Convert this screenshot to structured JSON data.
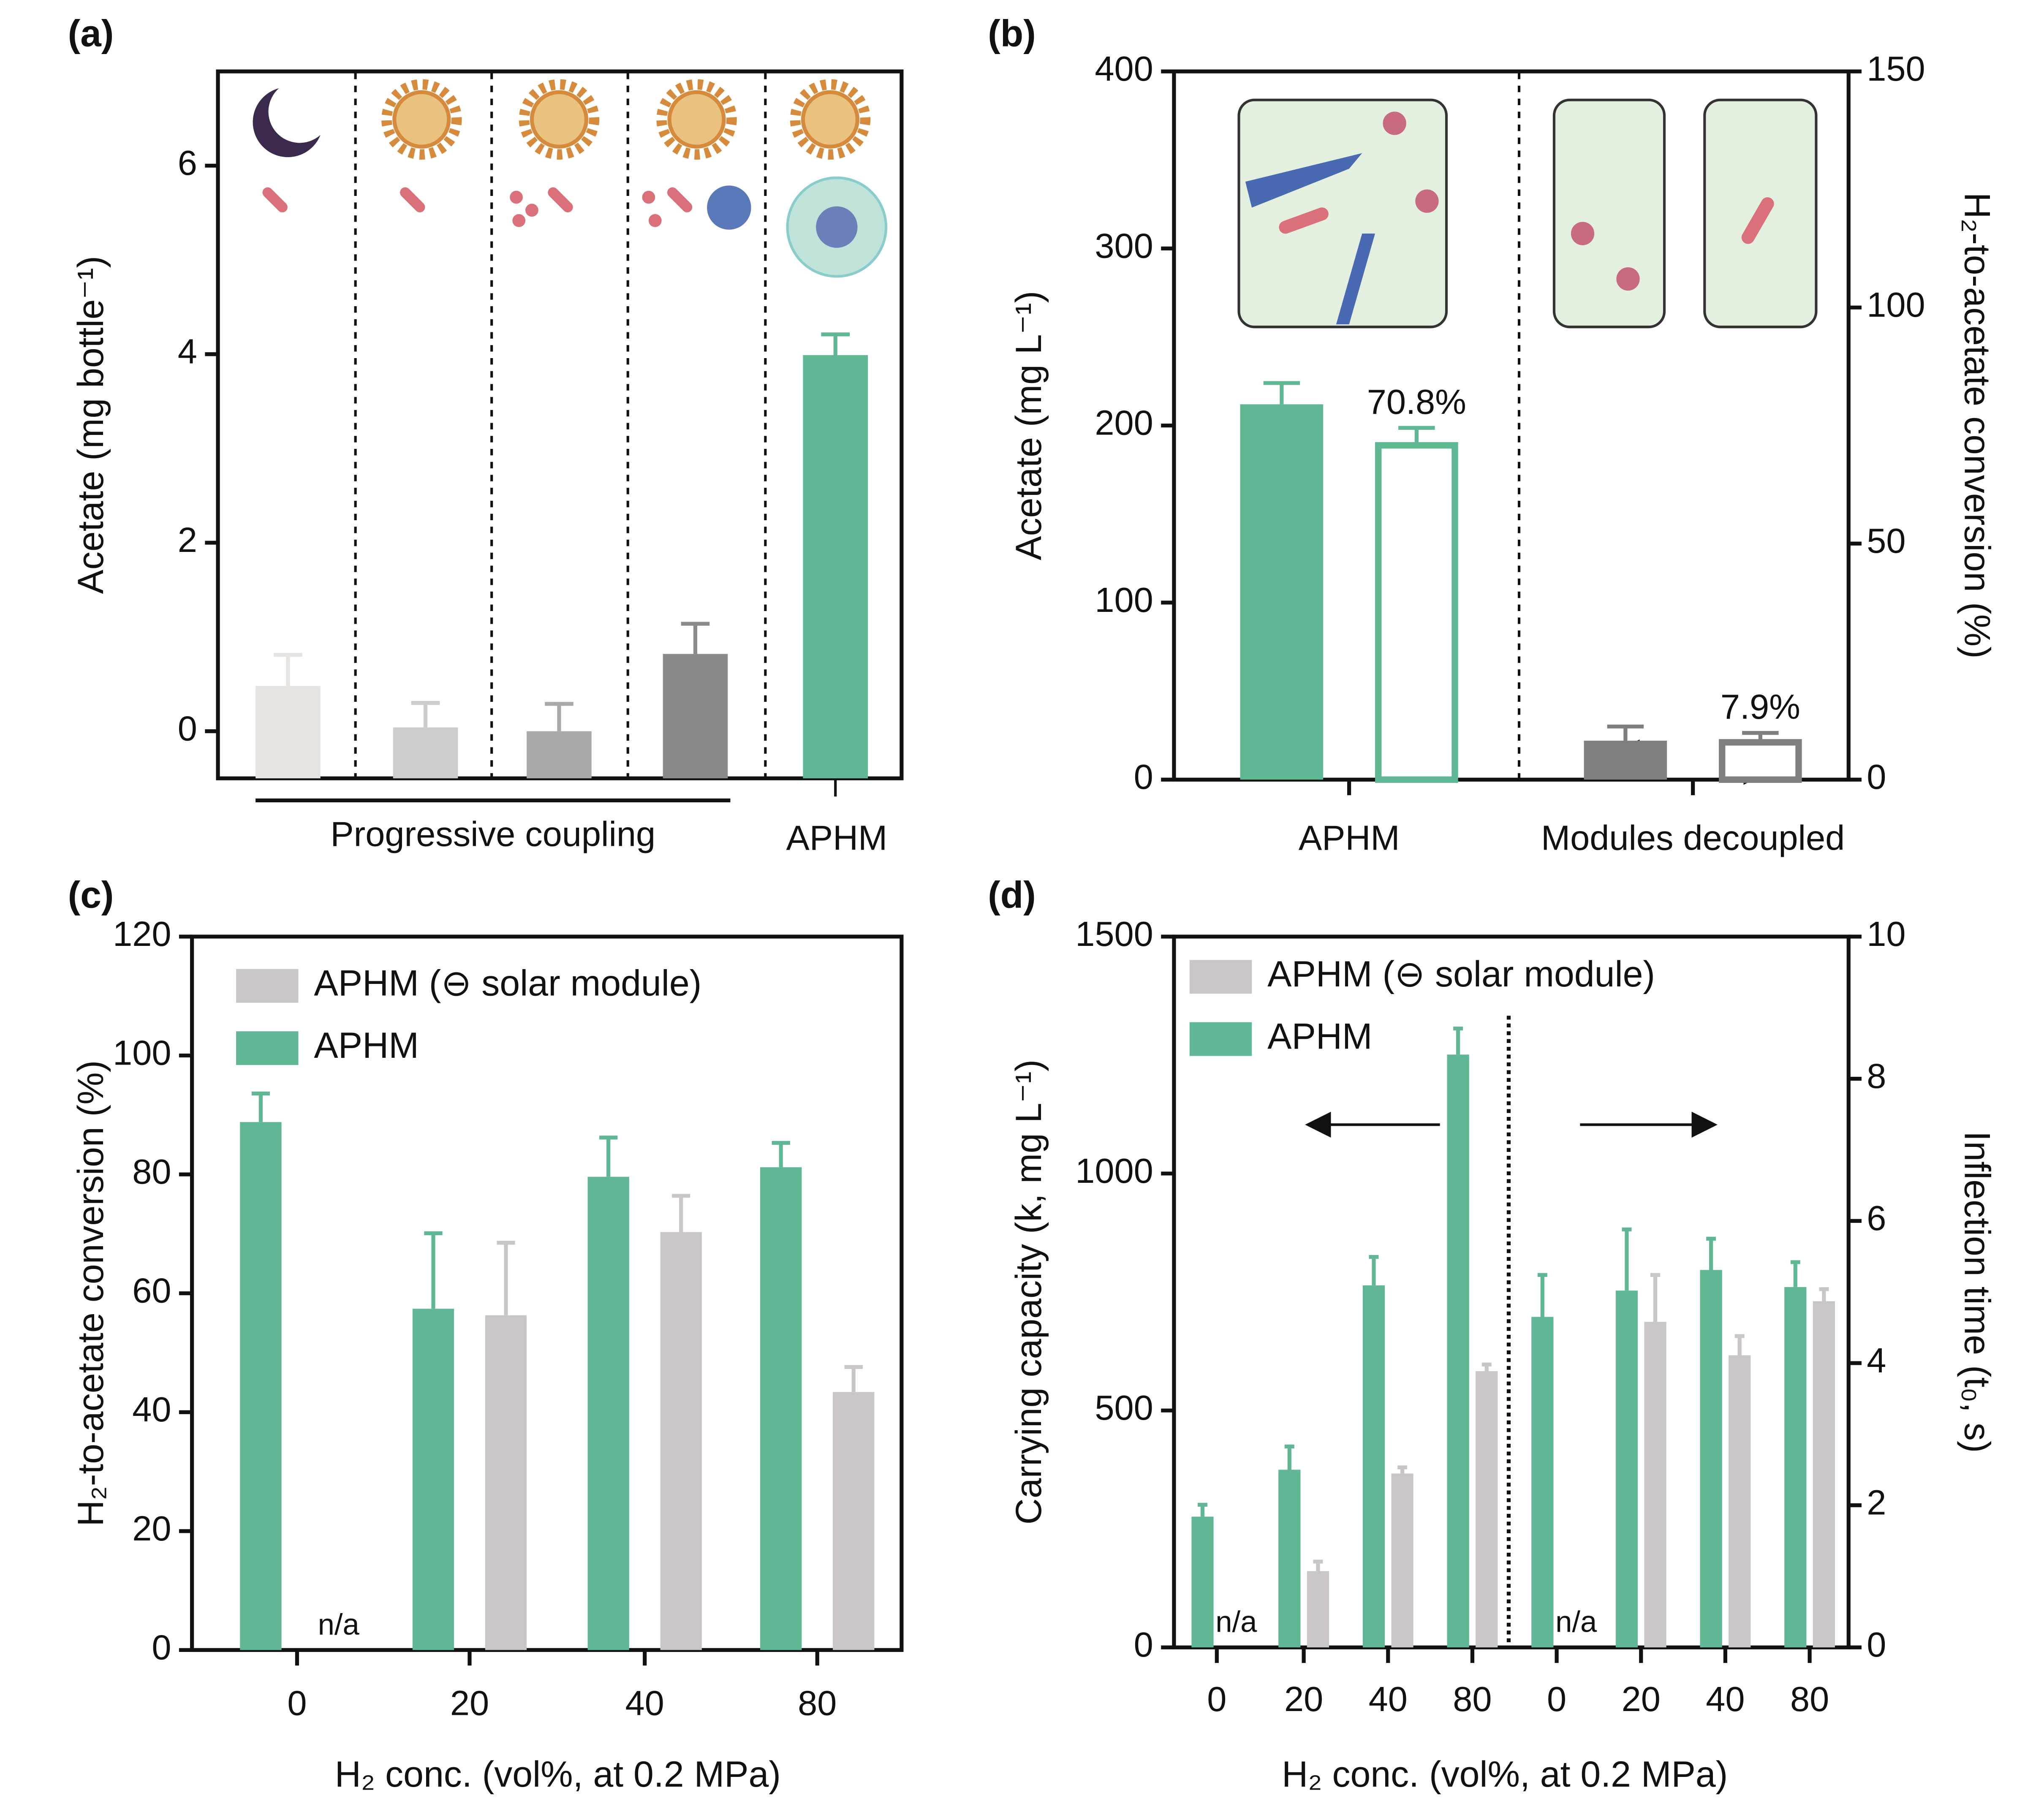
{
  "chart_data": [
    {
      "type": "bar",
      "panel_label": "(a)",
      "y_label": "Acetate (mg bottle⁻¹)",
      "categories": [
        null,
        null,
        null,
        null,
        null
      ],
      "values": [
        0.48,
        0.04,
        0,
        0.82,
        3.99
      ],
      "errors": [
        0.33,
        0.26,
        0.29,
        0.32,
        0.22
      ],
      "colors": [
        "#e6e3e1",
        "#cdcccb",
        "#a9a9a9",
        "#8a8a8a",
        "#5fb794"
      ],
      "groups": [
        "Progressive coupling",
        "APHM"
      ],
      "ylim": [
        -0.5,
        7
      ],
      "yticks": [
        0,
        2,
        4,
        6
      ]
    },
    {
      "type": "bar",
      "panel_label": "(b)",
      "y_label": "Acetate (mg L⁻¹)",
      "y2_label": "H₂-to-acetate conversion (%)",
      "categories": [
        "APHM",
        "Modules decoupled"
      ],
      "series": [
        {
          "colors": [
            "#5fb794",
            "#7f7f7f"
          ],
          "values": [
            212,
            22
          ],
          "errors": [
            12,
            8
          ]
        },
        {
          "colors": [
            "#5fb794",
            "#7f7f7f"
          ],
          "outline": true,
          "axis": "y2",
          "values": [
            70.8,
            7.9
          ],
          "value_labels": [
            "70.8%",
            "7.9%"
          ],
          "errors": [
            3.7,
            2
          ]
        }
      ],
      "ylim": [
        0,
        400
      ],
      "yticks": [
        0,
        100,
        200,
        300,
        400
      ],
      "y2lim": [
        0,
        150
      ],
      "y2ticks": [
        0,
        50,
        100,
        150
      ]
    },
    {
      "type": "bar",
      "panel_label": "(c)",
      "y_label": "H₂-to-acetate conversion (%)",
      "x_label": "H₂ conc. (vol%, at 0.2 MPa)",
      "categories": [
        "0",
        "20",
        "40",
        "80"
      ],
      "series": [
        {
          "name": "APHM (⊖ solar module)",
          "color": "#c9c6c5",
          "values": [
            null,
            56.3,
            70.3,
            43.4
          ],
          "value_labels": [
            "n/a",
            null,
            null,
            null
          ],
          "errors": [
            null,
            12.2,
            6.1,
            4.2
          ]
        },
        {
          "name": "APHM",
          "color": "#5fb794",
          "values": [
            88.8,
            57.4,
            79.6,
            81.2
          ],
          "errors": [
            4.8,
            12.7,
            6.6,
            4.1
          ]
        }
      ],
      "legend": "upper left",
      "ylim": [
        0,
        120
      ],
      "yticks": [
        0,
        20,
        40,
        60,
        80,
        100,
        120
      ]
    },
    {
      "type": "bar",
      "panel_label": "(d)",
      "y_label": "Carrying capacity (k, mg L⁻¹)",
      "y2_label": "Inflection time (t₀, s)",
      "x_label": "H₂ conc. (vol%, at 0.2 MPa)",
      "categories": [
        "0",
        "20",
        "40",
        "80",
        "0",
        "20",
        "40",
        "80"
      ],
      "series": [
        {
          "name": "APHM (⊖ solar module)",
          "color": "#c9c6c5",
          "values": [
            null,
            161,
            367,
            583,
            null,
            null,
            null,
            null
          ],
          "value_labels": [
            "n/a",
            null,
            null,
            null,
            null,
            null,
            null,
            null
          ],
          "errors": [
            null,
            20,
            13,
            14,
            null,
            null,
            null,
            null
          ]
        },
        {
          "name": "APHM",
          "color": "#5fb794",
          "values": [
            276,
            375,
            764,
            1251,
            null,
            null,
            null,
            null
          ],
          "errors": [
            25,
            49,
            60,
            55,
            null,
            null,
            null,
            null
          ]
        },
        {
          "color": "#c9c6c5",
          "axis": "y2",
          "values": [
            null,
            null,
            null,
            null,
            null,
            4.58,
            4.11,
            4.87
          ],
          "value_labels": [
            null,
            null,
            null,
            null,
            "n/a",
            null,
            null,
            null
          ],
          "errors": [
            null,
            null,
            null,
            null,
            null,
            0.66,
            0.27,
            0.17
          ]
        },
        {
          "color": "#5fb794",
          "axis": "y2",
          "values": [
            null,
            null,
            null,
            null,
            4.65,
            5.02,
            5.31,
            5.07
          ],
          "errors": [
            null,
            null,
            null,
            null,
            0.59,
            0.86,
            0.44,
            0.35
          ]
        }
      ],
      "legend": "upper left",
      "ylim": [
        0,
        1500
      ],
      "yticks": [
        0,
        500,
        1000,
        1500
      ],
      "y2lim": [
        0,
        10
      ],
      "y2ticks": [
        0,
        2,
        4,
        6,
        8,
        10
      ]
    }
  ]
}
